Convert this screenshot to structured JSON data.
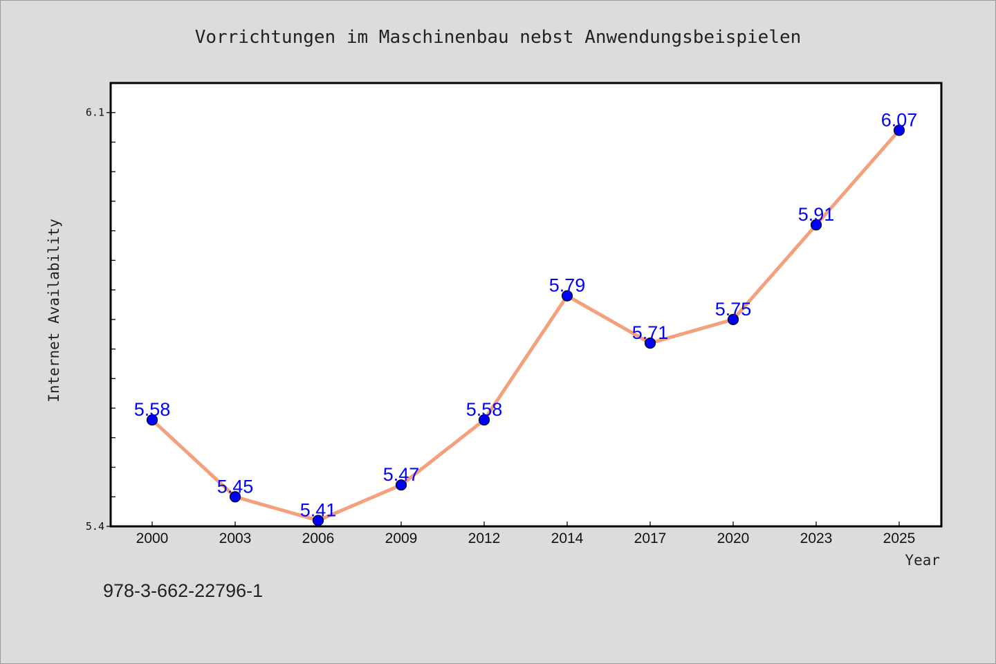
{
  "chart_data": {
    "type": "line",
    "title": "Vorrichtungen im Maschinenbau nebst Anwendungsbeispielen",
    "xlabel": "Year",
    "ylabel": "Internet Availability",
    "categories": [
      "2000",
      "2003",
      "2006",
      "2009",
      "2012",
      "2014",
      "2017",
      "2020",
      "2023",
      "2025"
    ],
    "series": [
      {
        "values": [
          5.58,
          5.45,
          5.41,
          5.47,
          5.58,
          5.79,
          5.71,
          5.75,
          5.91,
          6.07
        ],
        "data_labels": [
          "5.58",
          "5.45",
          "5.41",
          "5.47",
          "5.58",
          "5.79",
          "5.71",
          "5.75",
          "5.91",
          "6.07"
        ]
      }
    ],
    "ylim": [
      5.4,
      6.15
    ],
    "y_tick_labels": [
      {
        "value": 5.4,
        "label": "5.4"
      },
      {
        "value": 6.1,
        "label": "6.1"
      }
    ],
    "y_minor_ticks": [
      5.45,
      5.5,
      5.55,
      5.6,
      5.65,
      5.7,
      5.75,
      5.8,
      5.85,
      5.9,
      5.95,
      6.0,
      6.05,
      6.1
    ],
    "grid": false,
    "legend": "none",
    "colors": {
      "line": "#f4a07c",
      "marker": "#0000ff",
      "marker_edge": "#000000",
      "data_label": "#0000ff",
      "plot_background": "#ffffff",
      "figure_background": "#dcdcdc"
    }
  },
  "footer": {
    "isbn": "978-3-662-22796-1"
  }
}
